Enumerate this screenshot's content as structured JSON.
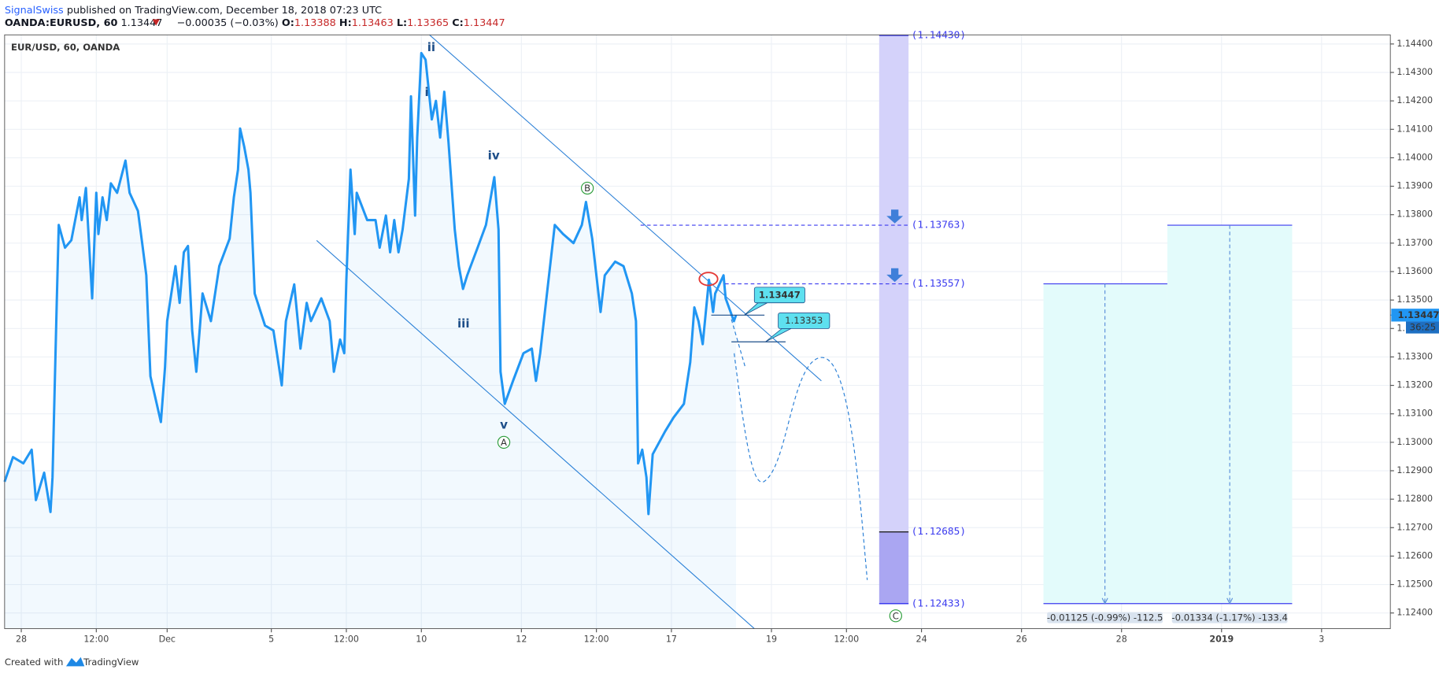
{
  "header": {
    "author": "SignalSwiss",
    "published": "published on TradingView.com, December 18, 2018 07:23 UTC",
    "symbol": "OANDA:EURUSD, 60",
    "price": "1.13447",
    "change": "−0.00035 (−0.03%)",
    "o_label": "O:",
    "o": "1.13388",
    "h_label": "H:",
    "h": "1.13463",
    "l_label": "L:",
    "l": "1.13365",
    "c_label": "C:",
    "c": "1.13447"
  },
  "footer": {
    "created": "Created with",
    "brand": "TradingView"
  },
  "chart_data": {
    "type": "line",
    "title": "EUR/USD, 60, OANDA",
    "color": "#2196f3",
    "grid": true,
    "x": [
      0,
      4,
      9,
      13,
      15,
      19,
      22,
      23,
      25,
      26,
      29,
      32,
      36,
      37,
      39,
      42,
      44,
      45,
      47,
      49,
      51,
      54,
      58,
      60,
      64,
      66,
      68,
      70,
      73,
      75,
      77,
      78,
      82,
      84,
      86,
      88,
      90,
      92,
      95,
      99,
      103,
      108,
      110,
      112,
      113,
      115,
      117,
      118,
      120,
      125,
      129,
      131,
      133,
      135,
      139,
      142,
      145,
      147,
      152,
      156,
      158,
      161,
      163,
      164,
      166,
      168,
      169,
      174,
      178,
      180,
      183,
      185,
      187,
      189,
      191,
      194,
      195,
      197,
      198,
      200,
      202,
      205,
      207,
      209,
      211,
      213,
      216,
      218,
      220,
      222,
      227,
      231,
      235,
      237,
      238,
      240,
      244,
      249,
      253,
      255,
      257,
      260,
      264,
      268,
      273,
      277,
      279,
      282,
      286,
      288,
      293,
      297,
      301,
      303,
      304,
      306,
      308,
      309,
      311,
      317,
      321,
      326,
      329,
      331,
      333,
      335,
      338,
      340,
      341,
      345,
      346,
      350,
      351
    ],
    "values": [
      1.12861,
      1.12948,
      1.12926,
      1.12974,
      1.12797,
      1.12893,
      1.12755,
      1.12877,
      1.1349,
      1.13764,
      1.13684,
      1.1371,
      1.13861,
      1.13781,
      1.13894,
      1.13506,
      1.13877,
      1.13732,
      1.13861,
      1.13781,
      1.1391,
      1.13877,
      1.1399,
      1.13877,
      1.13813,
      1.137,
      1.13587,
      1.13232,
      1.13135,
      1.13071,
      1.13264,
      1.13426,
      1.13619,
      1.1349,
      1.13668,
      1.1369,
      1.13393,
      1.13248,
      1.13523,
      1.13426,
      1.13619,
      1.13716,
      1.13861,
      1.13958,
      1.14103,
      1.14039,
      1.13958,
      1.13877,
      1.13523,
      1.1341,
      1.13393,
      1.13297,
      1.132,
      1.13426,
      1.13555,
      1.13329,
      1.1349,
      1.13426,
      1.13506,
      1.13426,
      1.13248,
      1.13361,
      1.13313,
      1.13571,
      1.13958,
      1.13732,
      1.13877,
      1.13781,
      1.13781,
      1.13684,
      1.13797,
      1.13668,
      1.13781,
      1.13668,
      1.13748,
      1.13926,
      1.14216,
      1.13797,
      1.14071,
      1.14368,
      1.14345,
      1.14135,
      1.142,
      1.14071,
      1.14232,
      1.14055,
      1.13748,
      1.13619,
      1.13539,
      1.13587,
      1.13684,
      1.13764,
      1.13932,
      1.13748,
      1.13248,
      1.13135,
      1.13216,
      1.13313,
      1.13329,
      1.13216,
      1.13313,
      1.13506,
      1.13764,
      1.13732,
      1.137,
      1.13764,
      1.13845,
      1.13716,
      1.13458,
      1.13587,
      1.13635,
      1.13619,
      1.13523,
      1.13426,
      1.12926,
      1.12974,
      1.12877,
      1.12748,
      1.12958,
      1.13039,
      1.13087,
      1.13135,
      1.13281,
      1.13474,
      1.13426,
      1.13345,
      1.13571,
      1.13458,
      1.13523,
      1.13587,
      1.13506,
      1.13426,
      1.13447
    ],
    "xlim": [
      0,
      665
    ],
    "xticks": [
      {
        "value": 8,
        "label": "28"
      },
      {
        "value": 44,
        "label": "12:00"
      },
      {
        "value": 78,
        "label": "Dec"
      },
      {
        "value": 128,
        "label": "5"
      },
      {
        "value": 164,
        "label": "12:00"
      },
      {
        "value": 200,
        "label": "10"
      },
      {
        "value": 248,
        "label": "12"
      },
      {
        "value": 284,
        "label": "12:00"
      },
      {
        "value": 320,
        "label": "17"
      },
      {
        "value": 368,
        "label": "19"
      },
      {
        "value": 404,
        "label": "12:00"
      },
      {
        "value": 440,
        "label": "24"
      },
      {
        "value": 488,
        "label": "26"
      },
      {
        "value": 536,
        "label": "28"
      },
      {
        "value": 584,
        "label": "2019"
      },
      {
        "value": 632,
        "label": "3"
      }
    ],
    "ylim": [
      1.12345,
      1.14432
    ],
    "yticks": [
      {
        "value": 1.124,
        "label": "1.12400"
      },
      {
        "value": 1.125,
        "label": "1.12500"
      },
      {
        "value": 1.126,
        "label": "1.12600"
      },
      {
        "value": 1.127,
        "label": "1.12700"
      },
      {
        "value": 1.128,
        "label": "1.12800"
      },
      {
        "value": 1.129,
        "label": "1.12900"
      },
      {
        "value": 1.13,
        "label": "1.13000"
      },
      {
        "value": 1.131,
        "label": "1.13100"
      },
      {
        "value": 1.132,
        "label": "1.13200"
      },
      {
        "value": 1.133,
        "label": "1.13300"
      },
      {
        "value": 1.134,
        "label": "1.13400"
      },
      {
        "value": 1.135,
        "label": "1.13500"
      },
      {
        "value": 1.136,
        "label": "1.13600"
      },
      {
        "value": 1.137,
        "label": "1.13700"
      },
      {
        "value": 1.138,
        "label": "1.13800"
      },
      {
        "value": 1.139,
        "label": "1.13900"
      },
      {
        "value": 1.14,
        "label": "1.14000"
      },
      {
        "value": 1.141,
        "label": "1.14100"
      },
      {
        "value": 1.142,
        "label": "1.14200"
      },
      {
        "value": 1.143,
        "label": "1.14300"
      },
      {
        "value": 1.144,
        "label": "1.14400"
      }
    ],
    "last_price": {
      "value": 1.13447,
      "label": "1.13447"
    },
    "countdown": "36:25",
    "levels": [
      {
        "value": 1.1443,
        "label": "(1.14430)"
      },
      {
        "value": 1.13763,
        "label": "(1.13763)"
      },
      {
        "value": 1.13557,
        "label": "(1.13557)"
      },
      {
        "value": 1.12685,
        "label": "(1.12685)"
      },
      {
        "value": 1.12433,
        "label": "(1.12433)"
      }
    ],
    "callouts": [
      1.13447,
      1.13353
    ],
    "wave_labels": [
      "ii",
      "i",
      "iv",
      "iii",
      "v",
      "A",
      "B",
      "C"
    ],
    "measures": [
      "-0.01125 (-0.99%) -112.5",
      "-0.01334 (-1.17%) -133.4"
    ]
  }
}
